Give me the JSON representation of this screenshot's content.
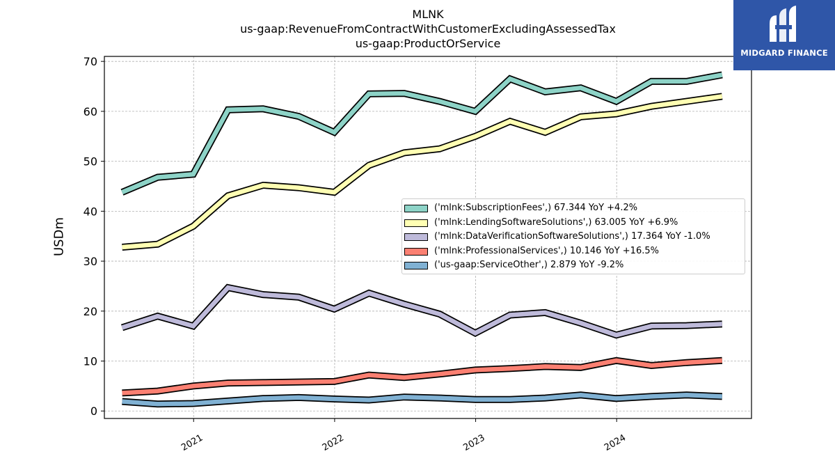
{
  "chart_data": {
    "type": "line",
    "title": [
      "MLNK",
      "us-gaap:RevenueFromContractWithCustomerExcludingAssessedTax",
      "us-gaap:ProductOrService"
    ],
    "xlabel": "",
    "ylabel": "USDm",
    "ylim": [
      -1.5,
      71
    ],
    "xlim": [
      "2020-05-15",
      "2024-12-15"
    ],
    "yticks": [
      0,
      10,
      20,
      30,
      40,
      50,
      60,
      70
    ],
    "xticks": [
      {
        "date": "2021-01-01",
        "label": "2021"
      },
      {
        "date": "2022-01-01",
        "label": "2022"
      },
      {
        "date": "2023-01-01",
        "label": "2023"
      },
      {
        "date": "2024-01-01",
        "label": "2024"
      }
    ],
    "grid": true,
    "legend_position": "center-right",
    "x": [
      "2020-06-30",
      "2020-09-30",
      "2020-12-31",
      "2021-03-31",
      "2021-06-30",
      "2021-09-30",
      "2021-12-31",
      "2022-03-31",
      "2022-06-30",
      "2022-09-30",
      "2022-12-31",
      "2023-03-31",
      "2023-06-30",
      "2023-09-30",
      "2023-12-31",
      "2024-03-31",
      "2024-06-30",
      "2024-09-30"
    ],
    "series": [
      {
        "name": "('mlnk:SubscriptionFees',) 67.344 YoY +4.2%",
        "color": "#8dd3c7",
        "values": [
          43.8,
          46.8,
          47.4,
          60.3,
          60.5,
          59.0,
          55.8,
          63.5,
          63.6,
          62.0,
          60.0,
          66.5,
          63.9,
          64.7,
          62.0,
          66.0,
          66.0,
          67.3
        ]
      },
      {
        "name": "('mlnk:LendingSoftwareSolutions',) 63.005 YoY +6.9%",
        "color": "#ffffb3",
        "values": [
          32.8,
          33.4,
          37.0,
          43.1,
          45.2,
          44.7,
          43.8,
          49.2,
          51.7,
          52.5,
          55.0,
          58.0,
          55.8,
          58.9,
          59.5,
          61.0,
          62.0,
          63.0
        ]
      },
      {
        "name": "('mlnk:DataVerificationSoftwareSolutions',) 17.364 YoY -1.0%",
        "color": "#bebada",
        "values": [
          16.7,
          19.0,
          17.0,
          24.7,
          23.3,
          22.8,
          20.4,
          23.6,
          21.4,
          19.4,
          15.6,
          19.2,
          19.7,
          17.6,
          15.2,
          17.0,
          17.1,
          17.4
        ]
      },
      {
        "name": "('mlnk:ProfessionalServices',) 10.146 YoY +16.5%",
        "color": "#fb8072",
        "values": [
          3.6,
          4.0,
          5.0,
          5.6,
          5.7,
          5.8,
          5.9,
          7.2,
          6.7,
          7.4,
          8.2,
          8.5,
          8.9,
          8.7,
          10.1,
          9.1,
          9.7,
          10.1
        ]
      },
      {
        "name": "('us-gaap:ServiceOther',) 2.879 YoY -9.2%",
        "color": "#80b1d3",
        "values": [
          1.9,
          1.4,
          1.5,
          2.0,
          2.5,
          2.7,
          2.4,
          2.2,
          2.8,
          2.6,
          2.3,
          2.3,
          2.6,
          3.2,
          2.5,
          2.9,
          3.2,
          2.9
        ]
      }
    ]
  },
  "watermark": {
    "text": "MIDGARD FINANCE",
    "color": "#2f56a8",
    "icon": "midgard-logo-icon"
  }
}
